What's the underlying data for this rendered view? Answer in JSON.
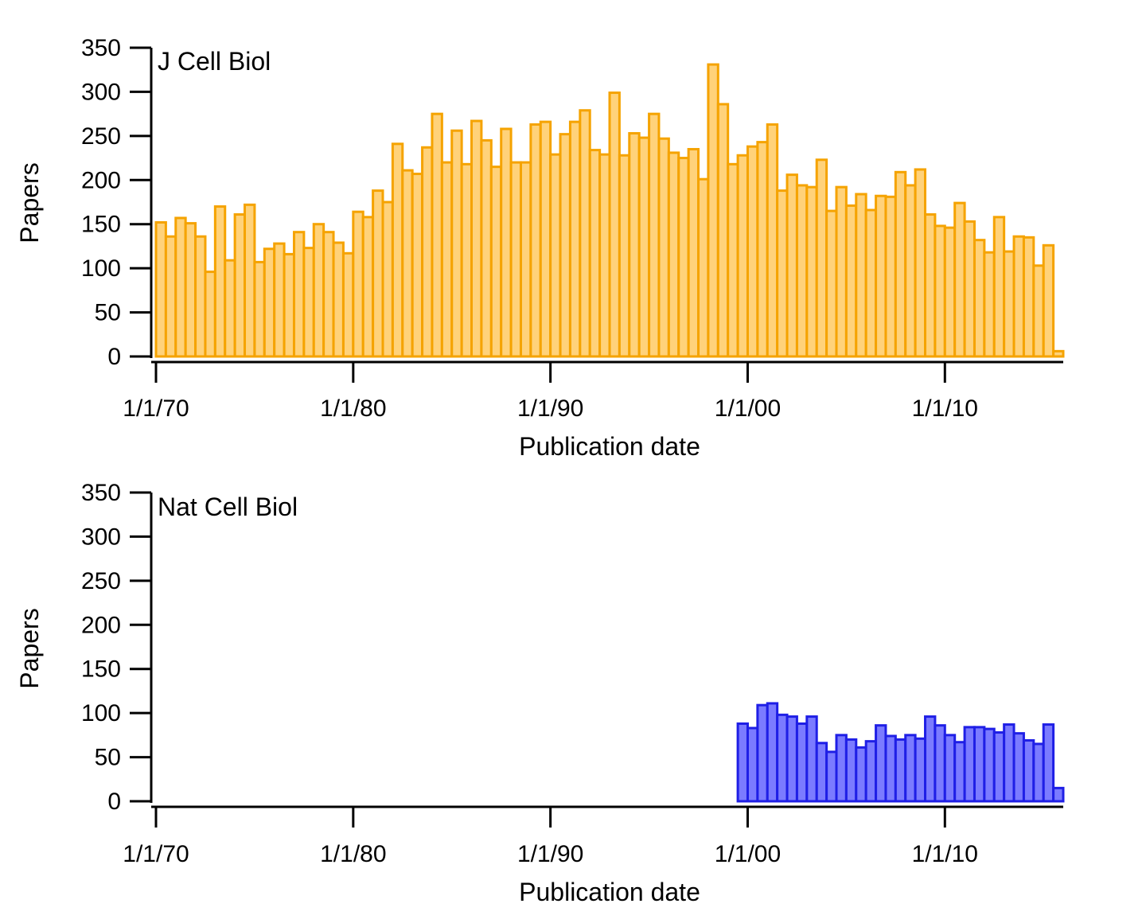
{
  "chart_data": [
    {
      "type": "bar",
      "title": "J Cell Biol",
      "xlabel": "Publication date",
      "ylabel": "Papers",
      "ylim": [
        0,
        350
      ],
      "yticks": [
        "0",
        "50",
        "100",
        "150",
        "200",
        "250",
        "300",
        "350"
      ],
      "xticks": [
        "1/1/70",
        "1/1/80",
        "1/1/90",
        "1/1/00",
        "1/1/10"
      ],
      "xlim": [
        "1970-01-01",
        "2016-01-01"
      ],
      "bin": "half-year",
      "grid": false,
      "colors": {
        "fill": "#FFD27A",
        "stroke": "#F5A300"
      },
      "series": [
        {
          "start": "1970-01-01",
          "values": [
            152,
            136,
            157,
            151,
            136,
            96,
            170,
            109,
            161,
            172,
            107,
            122,
            128,
            116,
            141,
            123,
            150,
            141,
            129,
            117,
            164,
            158,
            188,
            175,
            241,
            211,
            207,
            237,
            275,
            220,
            256,
            218,
            267,
            245,
            215,
            258,
            220,
            220,
            263,
            266,
            229,
            252,
            266,
            279,
            234,
            229,
            299,
            228,
            253,
            248,
            275,
            247,
            231,
            225,
            235,
            201,
            331,
            286,
            218,
            228,
            238,
            243,
            263,
            188,
            206,
            194,
            192,
            223,
            165,
            192,
            171,
            184,
            166,
            182,
            181,
            209,
            194,
            212,
            161,
            148,
            146,
            174,
            153,
            132,
            118,
            158,
            119,
            136,
            135,
            103,
            126,
            6
          ]
        }
      ]
    },
    {
      "type": "bar",
      "title": "Nat Cell Biol",
      "xlabel": "Publication date",
      "ylabel": "Papers",
      "ylim": [
        0,
        350
      ],
      "yticks": [
        "0",
        "50",
        "100",
        "150",
        "200",
        "250",
        "300",
        "350"
      ],
      "xticks": [
        "1/1/70",
        "1/1/80",
        "1/1/90",
        "1/1/00",
        "1/1/10"
      ],
      "xlim": [
        "1970-01-01",
        "2016-01-01"
      ],
      "bin": "half-year",
      "grid": false,
      "colors": {
        "fill": "#7B7BFF",
        "stroke": "#1F1FE6"
      },
      "series": [
        {
          "start": "1999-07-01",
          "values": [
            88,
            83,
            109,
            111,
            98,
            96,
            88,
            96,
            66,
            56,
            75,
            70,
            61,
            68,
            86,
            74,
            70,
            75,
            71,
            96,
            86,
            75,
            67,
            84,
            84,
            82,
            78,
            87,
            77,
            69,
            65,
            87,
            15
          ]
        }
      ]
    }
  ]
}
